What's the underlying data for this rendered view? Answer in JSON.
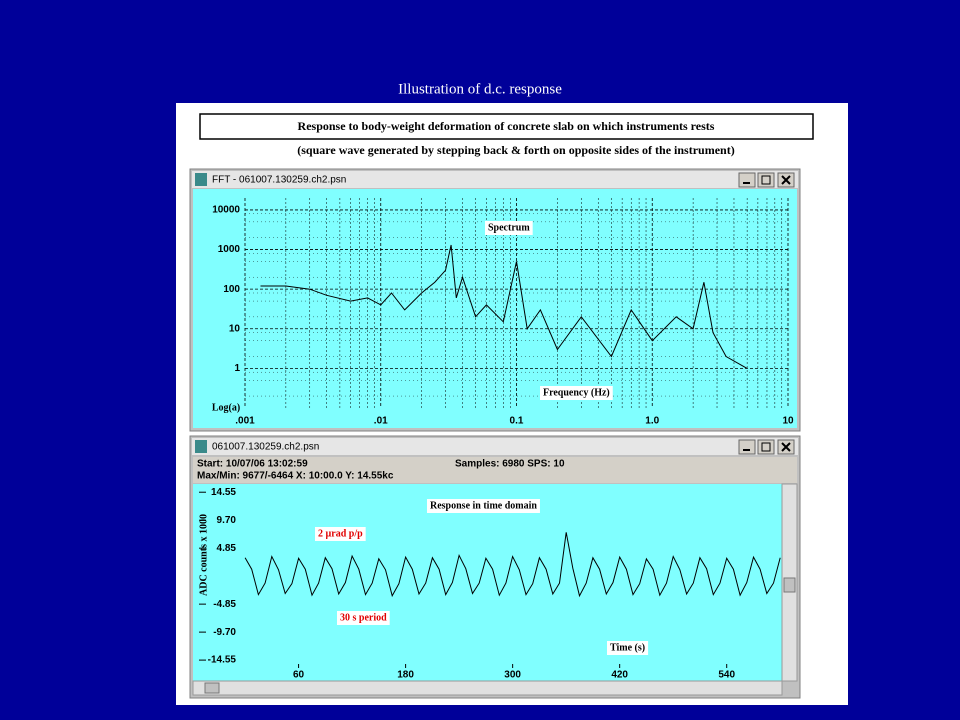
{
  "slide": {
    "title": "Illustration of d.c. response",
    "heading": "Response to body-weight deformation of concrete slab on which instruments rests",
    "subheading": "(square wave generated by stepping back & forth on opposite sides of the instrument)"
  },
  "windows": [
    {
      "title": "FFT - 061007.130259.ch2.psn"
    },
    {
      "title": "061007.130259.ch2.psn",
      "info": [
        "Start: 10/07/06 13:02:59",
        "Samples: 6980  SPS: 10",
        "Max/Min: 9677/-6464  X: 10:00.0  Y: 14.55kc"
      ]
    }
  ],
  "chart_data": [
    {
      "type": "line",
      "log_x": true,
      "log_y": true,
      "grid": true,
      "ylabel": "Log(a)",
      "annotations": [
        "Spectrum",
        "Frequency (Hz)"
      ],
      "xlim": [
        0.001,
        10
      ],
      "ylim": [
        0.1,
        20000
      ],
      "xticks": [
        {
          "value": 0.001,
          "label": ".001"
        },
        {
          "value": 0.01,
          "label": ".01"
        },
        0.1,
        {
          "value": 1,
          "label": "1.0"
        },
        10
      ],
      "yticks": [
        10000,
        1000,
        100,
        10,
        1
      ],
      "x": [
        0.0013,
        0.002,
        0.003,
        0.004,
        0.006,
        0.008,
        0.01,
        0.012,
        0.015,
        0.02,
        0.025,
        0.03,
        0.033,
        0.036,
        0.04,
        0.05,
        0.06,
        0.08,
        0.1,
        0.12,
        0.15,
        0.2,
        0.3,
        0.5,
        0.7,
        1.0,
        1.5,
        2.0,
        2.4,
        2.8,
        3.5,
        5
      ],
      "series": [
        {
          "name": "Spectrum",
          "color": "#000000",
          "values": [
            120,
            120,
            100,
            70,
            50,
            60,
            40,
            80,
            30,
            80,
            150,
            300,
            1300,
            60,
            200,
            20,
            40,
            15,
            500,
            10,
            30,
            3,
            20,
            2,
            30,
            5,
            20,
            10,
            150,
            8,
            2,
            1
          ]
        }
      ]
    },
    {
      "type": "line",
      "log_x": false,
      "log_y": false,
      "grid": false,
      "ylabel": "ADC counts x 1000",
      "annotations": [
        "Response in time domain",
        "2 µrad p/p",
        "30 s period",
        "Time (s)"
      ],
      "xlim": [
        -55,
        602
      ],
      "ylim": [
        -18,
        15.8
      ],
      "xticks": [
        60,
        180,
        300,
        420,
        540
      ],
      "yticks": [
        14.55,
        {
          "value": 9.7,
          "label": "9.70"
        },
        4.85,
        -4.85,
        {
          "value": -9.7,
          "label": "-9.70"
        },
        -14.55
      ],
      "x": [
        0,
        7.5,
        15,
        22.5,
        30,
        37.5,
        45,
        52.5,
        60,
        67.5,
        75,
        82.5,
        90,
        97.5,
        105,
        112.5,
        120,
        127.5,
        135,
        142.5,
        150,
        157.5,
        165,
        172.5,
        180,
        187.5,
        195,
        202.5,
        210,
        217.5,
        225,
        232.5,
        240,
        247.5,
        255,
        262.5,
        270,
        277.5,
        285,
        292.5,
        300,
        307.5,
        315,
        322.5,
        330,
        337.5,
        345,
        352.5,
        360,
        367.5,
        375,
        382.5,
        390,
        397.5,
        405,
        412.5,
        420,
        427.5,
        435,
        442.5,
        450,
        457.5,
        465,
        472.5,
        480,
        487.5,
        495,
        502.5,
        510,
        517.5,
        525,
        532.5,
        540,
        547.5,
        555,
        562.5,
        570,
        577.5,
        585,
        592.5,
        600
      ],
      "series": [
        {
          "name": "Response",
          "color": "#000000",
          "values": [
            3.2,
            1.2,
            -3.2,
            -1.2,
            3.4,
            1.1,
            -3.0,
            -1.3,
            3.1,
            1.2,
            -3.3,
            -1.2,
            3.2,
            1.3,
            -3.1,
            -1.1,
            3.5,
            1.2,
            -3.2,
            -1.2,
            3.0,
            1.1,
            -3.4,
            -1.3,
            3.3,
            1.2,
            -3.1,
            -1.2,
            3.2,
            1.2,
            -3.2,
            -1.1,
            3.6,
            1.3,
            -3.0,
            -1.2,
            3.1,
            1.2,
            -3.3,
            -1.2,
            3.4,
            1.1,
            -3.2,
            -1.3,
            3.2,
            1.2,
            -3.1,
            -1.2,
            7.6,
            1.4,
            -3.4,
            -1.2,
            3.2,
            1.2,
            -3.1,
            -1.1,
            3.3,
            1.2,
            -3.2,
            -1.3,
            3.0,
            1.2,
            -3.3,
            -1.2,
            3.4,
            1.1,
            -3.1,
            -1.2,
            3.2,
            1.3,
            -3.2,
            -1.2,
            3.1,
            1.2,
            -3.3,
            -1.1,
            3.3,
            1.2,
            -3.0,
            -1.2,
            3.2
          ]
        }
      ]
    }
  ]
}
